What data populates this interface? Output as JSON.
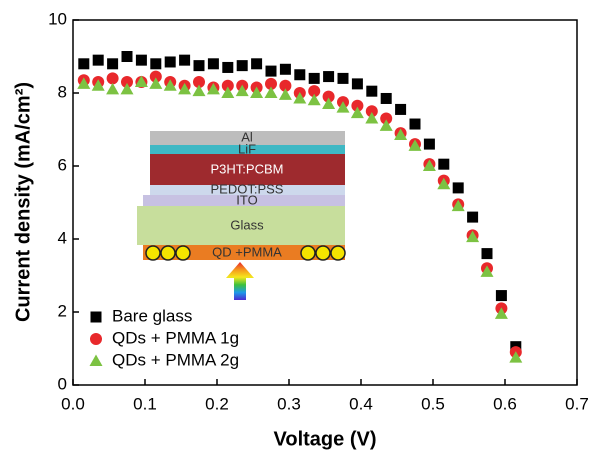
{
  "chart_data": {
    "type": "scatter",
    "xlabel": "Voltage (V)",
    "ylabel": "Current density (mA/cm²)",
    "x": [
      0.015,
      0.035,
      0.055,
      0.075,
      0.095,
      0.115,
      0.135,
      0.155,
      0.175,
      0.195,
      0.215,
      0.235,
      0.255,
      0.275,
      0.295,
      0.315,
      0.335,
      0.355,
      0.375,
      0.395,
      0.415,
      0.435,
      0.455,
      0.475,
      0.495,
      0.515,
      0.535,
      0.555,
      0.575,
      0.595,
      0.615
    ],
    "series": [
      {
        "name": "Bare glass",
        "color": "#000000",
        "marker": "square",
        "values": [
          8.8,
          8.9,
          8.8,
          9.0,
          8.9,
          8.8,
          8.85,
          8.9,
          8.75,
          8.8,
          8.7,
          8.75,
          8.8,
          8.6,
          8.65,
          8.5,
          8.4,
          8.45,
          8.4,
          8.25,
          8.05,
          7.85,
          7.55,
          7.15,
          6.6,
          6.05,
          5.4,
          4.6,
          3.6,
          2.45,
          1.05
        ]
      },
      {
        "name": "QDs + PMMA 1g",
        "color": "#e8282b",
        "marker": "circle",
        "values": [
          8.35,
          8.3,
          8.4,
          8.3,
          8.3,
          8.45,
          8.3,
          8.2,
          8.3,
          8.15,
          8.2,
          8.2,
          8.15,
          8.25,
          8.2,
          8.0,
          8.05,
          7.9,
          7.75,
          7.65,
          7.5,
          7.3,
          6.9,
          6.6,
          6.05,
          5.6,
          4.95,
          4.1,
          3.2,
          2.1,
          0.9
        ]
      },
      {
        "name": "QDs + PMMA 2g",
        "color": "#7cc242",
        "marker": "triangle",
        "values": [
          8.25,
          8.2,
          8.1,
          8.1,
          8.3,
          8.25,
          8.2,
          8.1,
          8.05,
          8.1,
          8.0,
          8.05,
          8.0,
          8.0,
          7.95,
          7.85,
          7.8,
          7.7,
          7.6,
          7.45,
          7.3,
          7.1,
          6.85,
          6.55,
          6.0,
          5.5,
          4.9,
          4.05,
          3.1,
          1.95,
          0.75
        ]
      }
    ],
    "xlim": [
      0,
      0.7
    ],
    "ylim": [
      0,
      10
    ],
    "xticks": [
      {
        "value": 0,
        "label": "0.0"
      },
      0.1,
      0.2,
      0.3,
      0.4,
      0.5,
      0.6,
      0.7
    ],
    "yticks": [
      0,
      2,
      4,
      6,
      8,
      10
    ],
    "legend": "lower-left",
    "inset_layers": [
      "Al",
      "LiF",
      "P3HT:PCBM",
      "PEDOT:PSS",
      "ITO",
      "Glass",
      "QD +PMMA"
    ]
  }
}
